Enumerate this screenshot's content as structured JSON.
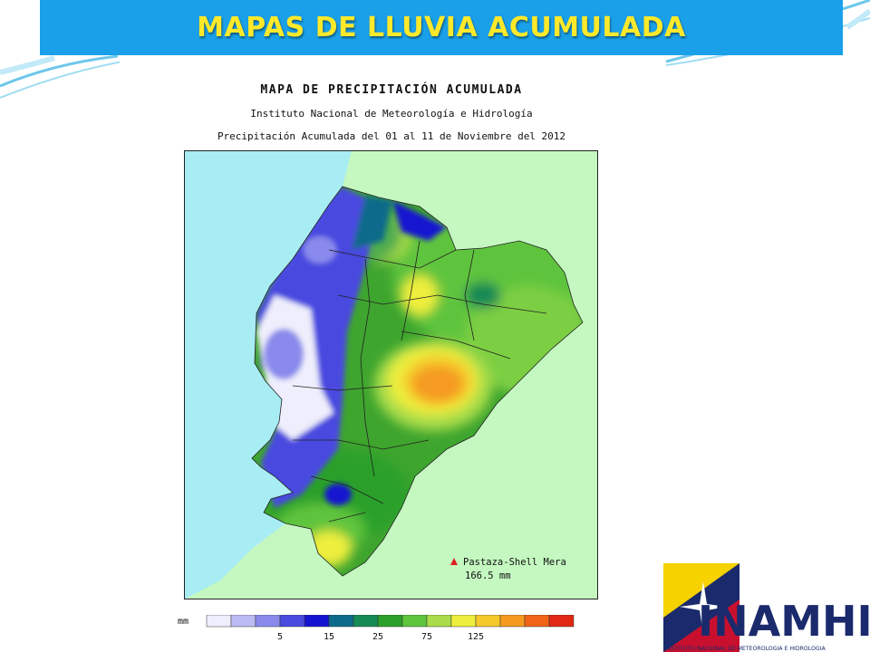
{
  "slide_title": "MAPAS DE LLUVIA  ACUMULADA",
  "map": {
    "title": "MAPA DE PRECIPITACIÓN ACUMULADA",
    "institution": "Instituto Nacional de Meteorología e Hidrología",
    "period": "Precipitación Acumulada del 01 al 11 de Noviembre del 2012"
  },
  "station": {
    "name": "Pastaza-Shell Mera",
    "value": "166.5 mm",
    "marker_color": "#e02020"
  },
  "legend": {
    "unit": "mm",
    "ticks": [
      "5",
      "15",
      "25",
      "75",
      "125"
    ],
    "colors": [
      "#eeeefc",
      "#bcbcf4",
      "#8a8aec",
      "#4a4ae0",
      "#1414d0",
      "#0e6a8a",
      "#158a55",
      "#2aa02a",
      "#5ec43c",
      "#a8dc48",
      "#eeee3c",
      "#f5c82a",
      "#f59a20",
      "#f06418",
      "#e02814"
    ]
  },
  "logo": {
    "text": "INAMHI",
    "subtitle": "INSTITUTO NACIONAL DE METEOROLOGIA E HIDROLOGIA"
  },
  "colors": {
    "title_bar": "#1aa0e8",
    "title_text": "#ffe92a",
    "ocean": "#a8ecf4",
    "land_outside": "#c4f8c0"
  }
}
